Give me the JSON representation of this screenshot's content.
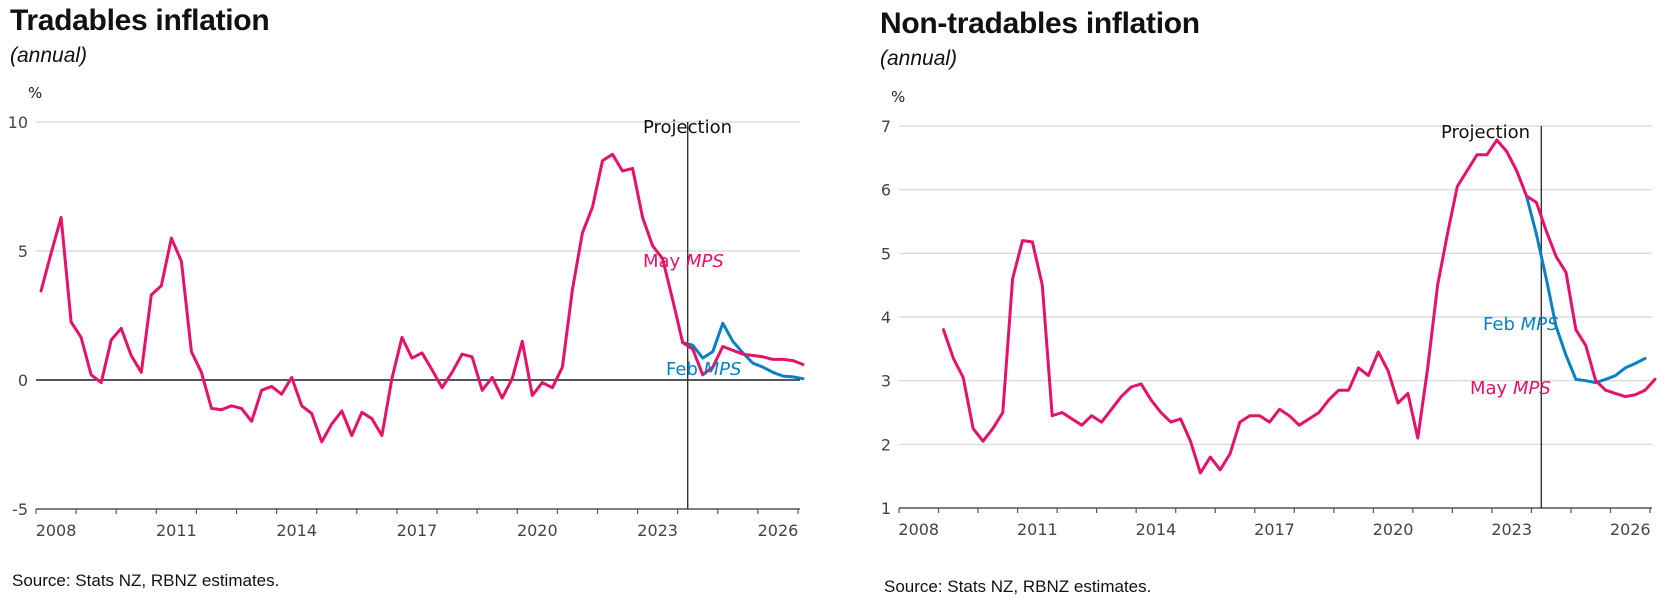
{
  "colors": {
    "may": "#E5126A",
    "feb": "#0A80C4",
    "grid": "#d4d4d4",
    "axis": "#555555",
    "zero": "#222222",
    "projection_line": "#333333"
  },
  "chart_data": [
    {
      "type": "line",
      "title": "Tradables inflation",
      "subtitle": "(annual)",
      "ylabel": "%",
      "xlabel": "",
      "ylim": [
        -5,
        10
      ],
      "yticks": [
        -5,
        0,
        5,
        10
      ],
      "xlim": [
        2008,
        2027.05
      ],
      "xticks": [
        "2008",
        "2011",
        "2014",
        "2017",
        "2020",
        "2023",
        "2026"
      ],
      "grid": true,
      "zero_line": 0,
      "projection_start": 2024.25,
      "projection_label": "Projection",
      "source": "Source: Stats NZ, RBNZ estimates.",
      "series": [
        {
          "name": "May MPS",
          "label_prefix": "May ",
          "label_italic": "MPS",
          "color_key": "may",
          "x_start": 2008.125,
          "x_step": 0.25,
          "values": [
            3.45,
            4.9,
            6.3,
            2.25,
            1.65,
            0.2,
            -0.1,
            1.55,
            2.0,
            0.95,
            0.3,
            3.3,
            3.65,
            5.5,
            4.6,
            1.1,
            0.3,
            -1.1,
            -1.15,
            -1.0,
            -1.1,
            -1.6,
            -0.4,
            -0.25,
            -0.55,
            0.1,
            -1.0,
            -1.3,
            -2.4,
            -1.7,
            -1.2,
            -2.15,
            -1.25,
            -1.5,
            -2.15,
            0.05,
            1.65,
            0.85,
            1.05,
            0.4,
            -0.3,
            0.3,
            1.0,
            0.9,
            -0.4,
            0.1,
            -0.7,
            0.05,
            1.5,
            -0.6,
            -0.1,
            -0.3,
            0.5,
            3.5,
            5.7,
            6.7,
            8.5,
            8.75,
            8.1,
            8.2,
            6.3,
            5.2,
            4.7,
            3.1,
            1.45,
            1.2,
            0.2,
            0.5,
            1.3,
            1.15,
            1.0,
            0.95,
            0.9,
            0.8,
            0.8,
            0.75,
            0.6
          ]
        },
        {
          "name": "Feb MPS",
          "label_prefix": "Feb ",
          "label_italic": "MPS",
          "color_key": "feb",
          "x_start": 2024.125,
          "x_step": 0.25,
          "values": [
            1.45,
            1.35,
            0.85,
            1.1,
            2.2,
            1.5,
            1.05,
            0.65,
            0.5,
            0.3,
            0.15,
            0.12,
            0.05
          ]
        }
      ]
    },
    {
      "type": "line",
      "title": "Non-tradables inflation",
      "subtitle": "(annual)",
      "ylabel": "%",
      "xlabel": "",
      "ylim": [
        1,
        7
      ],
      "yticks": [
        1,
        2,
        3,
        4,
        5,
        6,
        7
      ],
      "xlim": [
        2008,
        2027.05
      ],
      "xticks": [
        "2008",
        "2011",
        "2014",
        "2017",
        "2020",
        "2023",
        "2026"
      ],
      "grid": true,
      "zero_line": null,
      "projection_start": 2024.25,
      "projection_label": "Projection",
      "source": "Source: Stats NZ, RBNZ estimates.",
      "series": [
        {
          "name": "May MPS",
          "label_prefix": "May ",
          "label_italic": "MPS",
          "color_key": "may",
          "x_start": 2009.125,
          "x_step": 0.25,
          "values": [
            3.8,
            3.35,
            3.05,
            2.25,
            2.05,
            2.25,
            2.5,
            4.6,
            5.2,
            5.18,
            4.5,
            2.45,
            2.5,
            2.4,
            2.3,
            2.45,
            2.35,
            2.55,
            2.75,
            2.9,
            2.95,
            2.7,
            2.5,
            2.35,
            2.4,
            2.05,
            1.55,
            1.8,
            1.6,
            1.85,
            2.35,
            2.45,
            2.45,
            2.35,
            2.55,
            2.45,
            2.3,
            2.4,
            2.5,
            2.7,
            2.85,
            2.85,
            3.2,
            3.08,
            3.45,
            3.15,
            2.65,
            2.8,
            2.1,
            3.2,
            4.5,
            5.3,
            6.05,
            6.3,
            6.55,
            6.55,
            6.78,
            6.6,
            6.3,
            5.9,
            5.8,
            5.35,
            4.95,
            4.7,
            3.8,
            3.55,
            3.0,
            2.85,
            2.8,
            2.75,
            2.78,
            2.85,
            3.02
          ]
        },
        {
          "name": "Feb MPS",
          "label_prefix": "Feb ",
          "label_italic": "MPS",
          "color_key": "feb",
          "x_start": 2023.875,
          "x_step": 0.25,
          "values": [
            5.9,
            5.3,
            4.6,
            3.85,
            3.4,
            3.02,
            3.0,
            2.97,
            3.02,
            3.08,
            3.2,
            3.27,
            3.35
          ]
        }
      ]
    }
  ]
}
